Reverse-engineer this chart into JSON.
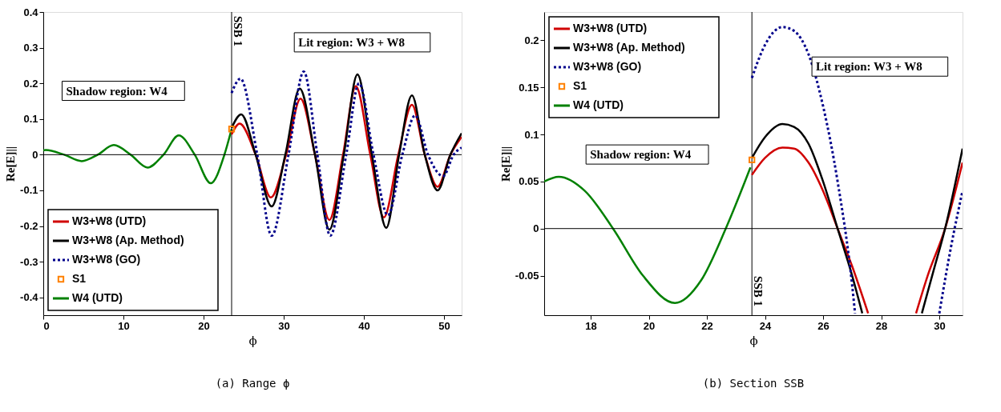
{
  "chart_data": [
    {
      "type": "line",
      "title": "(a) Range ϕ",
      "xlabel": "ϕ",
      "ylabel": "Re[E]||",
      "xlim": [
        0,
        52.2
      ],
      "xticks": [
        0,
        10,
        20,
        30,
        40,
        50
      ],
      "ylim": [
        -0.45,
        0.4
      ],
      "yticks": [
        -0.4,
        -0.3,
        -0.2,
        -0.1,
        {
          "value": 0,
          "label": "0"
        },
        0.1,
        0.2,
        0.3,
        0.4
      ],
      "legend": "bottom left",
      "series": [
        {
          "name": "W3+W8 (UTD)",
          "color": "#d00000",
          "line_style": "solid",
          "x": [
            23.5,
            24.5,
            26.5,
            28.4,
            30.3,
            32.1,
            33.9,
            35.7,
            37.4,
            39.0,
            40.8,
            42.5,
            44.3,
            46.0,
            47.6,
            49.2,
            50.8,
            52.2
          ],
          "values": [
            0.057,
            0.087,
            0,
            -0.12,
            0,
            0.157,
            0,
            -0.183,
            0,
            0.192,
            0,
            -0.176,
            0,
            0.14,
            0,
            -0.09,
            0,
            0.05
          ]
        },
        {
          "name": "W3+W8 (Ap. Method)",
          "color": "#000000",
          "line_style": "solid",
          "x": [
            23.5,
            24.7,
            26.5,
            28.5,
            30.2,
            32.0,
            33.9,
            35.7,
            37.5,
            39.2,
            41.0,
            42.8,
            44.4,
            46.0,
            47.6,
            49.2,
            50.8,
            52.2
          ],
          "values": [
            0.075,
            0.113,
            0,
            -0.145,
            0,
            0.185,
            0,
            -0.21,
            0,
            0.225,
            0,
            -0.205,
            0,
            0.166,
            0,
            -0.1,
            0,
            0.06
          ]
        },
        {
          "name": "W3+W8 (GO)",
          "color": "#00008b",
          "line_style": "dotted",
          "x": [
            23.5,
            24.6,
            26.7,
            28.5,
            30.6,
            32.5,
            34.2,
            35.8,
            37.8,
            39.4,
            41.2,
            43.0,
            44.8,
            46.4,
            48.0,
            49.9,
            51.2,
            52.2
          ],
          "values": [
            0.173,
            0.213,
            0,
            -0.227,
            0,
            0.233,
            0,
            -0.227,
            0,
            0.2,
            0,
            -0.17,
            0,
            0.11,
            0,
            -0.06,
            0,
            0.02
          ]
        },
        {
          "name": "S1",
          "type": "scatter",
          "marker": "square",
          "color": "#ff8000",
          "x": [
            23.5
          ],
          "values": [
            0.072
          ]
        },
        {
          "name": "W4 (UTD)",
          "color": "#008000",
          "line_style": "solid",
          "x": [
            0,
            0.3,
            2.6,
            4.8,
            6.8,
            8.8,
            10.9,
            13.0,
            15.0,
            16.9,
            18.9,
            20.9,
            22.6,
            23.5
          ],
          "values": [
            0.012,
            0.013,
            0,
            -0.018,
            0,
            0.027,
            0,
            -0.036,
            0,
            0.054,
            0,
            -0.08,
            0,
            0.072
          ]
        }
      ],
      "ref_lines": [
        {
          "axis": "x",
          "value": 23.5,
          "label": "SSB 1",
          "color": "#000000"
        },
        {
          "axis": "y",
          "value": 0,
          "color": "#000000"
        }
      ],
      "annotations": [
        "Shadow region: W4",
        "Lit region: W3 + W8"
      ]
    },
    {
      "type": "line",
      "title": "(b) Section SSB",
      "xlabel": "ϕ",
      "ylabel": "Re[E]||",
      "xlim": [
        16.4,
        30.8
      ],
      "xticks": [
        18,
        20,
        22,
        24,
        26,
        28,
        30
      ],
      "ylim": [
        -0.092,
        0.23
      ],
      "yticks": [
        -0.05,
        {
          "value": 0,
          "label": "0"
        },
        0.05,
        0.1,
        0.15,
        0.2
      ],
      "legend": "top left",
      "series": [
        {
          "name": "W3+W8 (UTD)",
          "color": "#d00000",
          "line_style": "solid",
          "x": [
            23.55,
            24.0,
            24.6,
            25.0,
            25.5,
            26.0,
            26.5,
            27.0,
            27.55,
            28.4,
            29.2,
            29.6,
            30.2,
            30.8
          ],
          "values": [
            0.057,
            0.075,
            0.086,
            0.085,
            0.07,
            0.04,
            0,
            -0.04,
            -0.09,
            null,
            -0.09,
            -0.05,
            0,
            0.07
          ]
        },
        {
          "name": "W3+W8 (Ap. Method)",
          "color": "#000000",
          "line_style": "solid",
          "x": [
            23.55,
            24.0,
            24.6,
            25.0,
            25.5,
            26.0,
            26.5,
            27.0,
            27.35,
            28.4,
            29.4,
            29.8,
            30.2,
            30.8
          ],
          "values": [
            0.075,
            0.097,
            0.111,
            0.108,
            0.09,
            0.05,
            0,
            -0.05,
            -0.09,
            null,
            -0.09,
            -0.045,
            0,
            0.085
          ]
        },
        {
          "name": "W3+W8 (GO)",
          "color": "#00008b",
          "line_style": "dotted",
          "x": [
            23.55,
            24.0,
            24.6,
            25.0,
            25.5,
            26.0,
            26.5,
            27.0,
            27.1,
            28.5,
            30.0,
            30.4,
            30.8
          ],
          "values": [
            0.16,
            0.195,
            0.214,
            0.21,
            0.185,
            0.13,
            0.05,
            -0.06,
            -0.09,
            null,
            -0.09,
            -0.02,
            0.04
          ]
        },
        {
          "name": "S1",
          "type": "scatter",
          "marker": "square",
          "color": "#ff8000",
          "x": [
            23.55
          ],
          "values": [
            0.073
          ]
        },
        {
          "name": "W4 (UTD)",
          "color": "#008000",
          "line_style": "solid",
          "x": [
            16.4,
            16.9,
            17.8,
            18.77,
            19.8,
            20.9,
            21.8,
            22.65,
            23.5
          ],
          "values": [
            0.05,
            0.055,
            0.04,
            0,
            -0.05,
            -0.079,
            -0.055,
            0,
            0.065
          ]
        }
      ],
      "ref_lines": [
        {
          "axis": "x",
          "value": 23.55,
          "label": "SSB 1",
          "color": "#000000"
        },
        {
          "axis": "y",
          "value": 0,
          "color": "#000000"
        }
      ],
      "annotations": [
        "Shadow region: W4",
        "Lit region: W3 + W8"
      ]
    }
  ]
}
